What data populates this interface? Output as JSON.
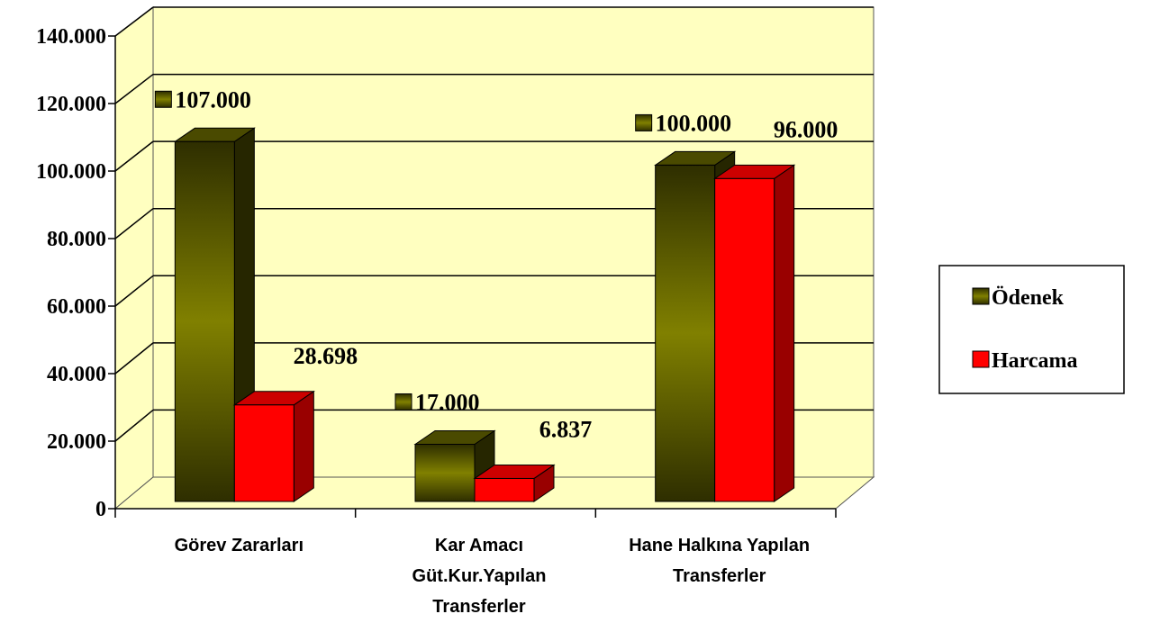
{
  "chart_data": {
    "type": "bar3d",
    "categories": [
      [
        "Görev Zararları"
      ],
      [
        "Kar Amacı",
        "Güt.Kur.Yapılan",
        "Transferler"
      ],
      [
        "Hane Halkına Yapılan",
        "Transferler"
      ]
    ],
    "series": [
      {
        "name": "Ödenek",
        "color": "#808000",
        "values": [
          107000,
          17000,
          100000
        ],
        "value_labels": [
          "107.000",
          "17.000",
          "100.000"
        ]
      },
      {
        "name": "Harcama",
        "color": "#ff0000",
        "values": [
          28698,
          6837,
          96000
        ],
        "value_labels": [
          "28.698",
          "6.837",
          "96.000"
        ]
      }
    ],
    "ylim": [
      0,
      140000
    ],
    "yticks": [
      0,
      {
        "value": 20000,
        "label": "20.000"
      },
      {
        "value": 40000,
        "label": "40.000"
      },
      {
        "value": 60000,
        "label": "60.000"
      },
      {
        "value": 80000,
        "label": "80.000"
      },
      {
        "value": 100000,
        "label": "100.000"
      },
      {
        "value": 120000,
        "label": "120.000"
      },
      {
        "value": 140000,
        "label": "140.000"
      }
    ],
    "grid": true,
    "legend": "right"
  }
}
